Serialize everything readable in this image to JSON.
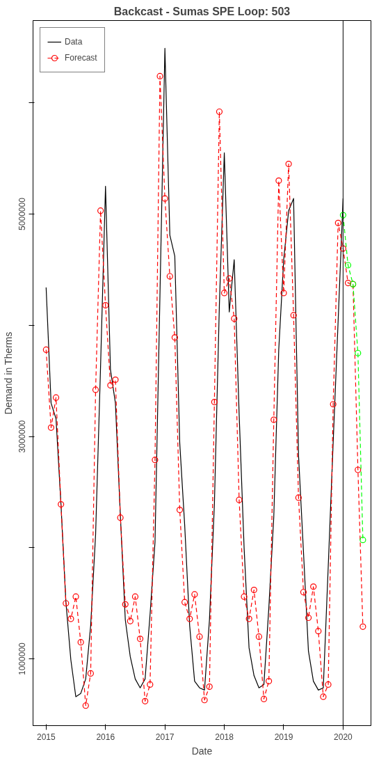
{
  "chart_data": {
    "type": "line",
    "title": "Backcast - Sumas SPE Loop: 503",
    "xlabel": "Date",
    "ylabel": "Demand in Therms",
    "xlim": [
      "2014-10-12",
      "2020-06-20"
    ],
    "xticks": [
      "2015",
      "2016",
      "2017",
      "2018",
      "2019",
      "2020"
    ],
    "ylim": [
      400000,
      6740000
    ],
    "yticks": [
      1000000,
      {
        "value": 2000000,
        "label": null
      },
      3000000,
      {
        "value": 4000000,
        "label": null
      },
      5000000,
      {
        "value": 6000000,
        "label": null
      }
    ],
    "grid": false,
    "legend": "top left",
    "ref_lines": [
      {
        "axis": "x",
        "value": "2020",
        "color": "#000000"
      }
    ],
    "series": [
      {
        "name": "Data",
        "color": "#000000",
        "marker": "none",
        "line_style": "solid",
        "x": [
          "2015-01",
          "2015-02",
          "2015-03",
          "2015-04",
          "2015-05",
          "2015-06",
          "2015-07",
          "2015-08",
          "2015-09",
          "2015-10",
          "2015-11",
          "2015-12",
          "2016-01",
          "2016-02",
          "2016-03",
          "2016-04",
          "2016-05",
          "2016-06",
          "2016-07",
          "2016-08",
          "2016-09",
          "2016-10",
          "2016-11",
          "2016-12",
          "2017-01",
          "2017-02",
          "2017-03",
          "2017-04",
          "2017-05",
          "2017-06",
          "2017-07",
          "2017-08",
          "2017-09",
          "2017-10",
          "2017-11",
          "2017-12",
          "2018-01",
          "2018-02",
          "2018-03",
          "2018-04",
          "2018-05",
          "2018-06",
          "2018-07",
          "2018-08",
          "2018-09",
          "2018-10",
          "2018-11",
          "2018-12",
          "2019-01",
          "2019-02",
          "2019-03",
          "2019-04",
          "2019-05",
          "2019-06",
          "2019-07",
          "2019-08",
          "2019-09",
          "2019-10",
          "2019-11",
          "2019-12",
          "2020-01"
        ],
        "values": [
          4340000,
          3300000,
          3160000,
          2390000,
          1510000,
          990000,
          660000,
          690000,
          820000,
          1300000,
          2120000,
          3630000,
          5250000,
          3600000,
          3300000,
          2290000,
          1350000,
          1020000,
          820000,
          740000,
          820000,
          1400000,
          2050000,
          4270000,
          6490000,
          4810000,
          4620000,
          2940000,
          2200000,
          1300000,
          800000,
          740000,
          720000,
          1350000,
          2390000,
          4170000,
          5550000,
          4120000,
          4590000,
          3200000,
          2000000,
          1100000,
          850000,
          740000,
          770000,
          1460000,
          2280000,
          3780000,
          4590000,
          5030000,
          5140000,
          2830000,
          1960000,
          1070000,
          800000,
          720000,
          740000,
          1830000,
          2950000,
          4040000,
          5140000
        ]
      },
      {
        "name": "Forecast",
        "color": "#ff0000",
        "marker": "circle",
        "line_style": "dashed",
        "x": [
          "2015-01",
          "2015-02",
          "2015-03",
          "2015-04",
          "2015-05",
          "2015-06",
          "2015-07",
          "2015-08",
          "2015-09",
          "2015-10",
          "2015-11",
          "2015-12",
          "2016-01",
          "2016-02",
          "2016-03",
          "2016-04",
          "2016-05",
          "2016-06",
          "2016-07",
          "2016-08",
          "2016-09",
          "2016-10",
          "2016-11",
          "2016-12",
          "2017-01",
          "2017-02",
          "2017-03",
          "2017-04",
          "2017-05",
          "2017-06",
          "2017-07",
          "2017-08",
          "2017-09",
          "2017-10",
          "2017-11",
          "2017-12",
          "2018-01",
          "2018-02",
          "2018-03",
          "2018-04",
          "2018-05",
          "2018-06",
          "2018-07",
          "2018-08",
          "2018-09",
          "2018-10",
          "2018-11",
          "2018-12",
          "2019-01",
          "2019-02",
          "2019-03",
          "2019-04",
          "2019-05",
          "2019-06",
          "2019-07",
          "2019-08",
          "2019-09",
          "2019-10",
          "2019-11",
          "2019-12",
          "2020-01",
          "2020-02",
          "2020-03",
          "2020-04",
          "2020-05"
        ],
        "values": [
          3780000,
          3080000,
          3350000,
          2390000,
          1500000,
          1360000,
          1560000,
          1150000,
          580000,
          870000,
          3420000,
          5030000,
          4180000,
          3460000,
          3510000,
          2270000,
          1490000,
          1340000,
          1560000,
          1180000,
          620000,
          770000,
          2790000,
          6240000,
          5140000,
          4440000,
          3890000,
          2340000,
          1510000,
          1360000,
          1580000,
          1200000,
          630000,
          750000,
          3310000,
          5920000,
          4290000,
          4420000,
          4060000,
          2430000,
          1560000,
          1360000,
          1620000,
          1200000,
          640000,
          800000,
          3150000,
          5300000,
          4290000,
          5450000,
          4090000,
          2450000,
          1600000,
          1370000,
          1650000,
          1250000,
          660000,
          770000,
          3290000,
          4920000,
          4690000,
          4380000,
          4370000,
          2700000,
          1290000
        ]
      },
      {
        "color": "#00ff00",
        "marker": "circle",
        "line_style": "dashed",
        "x": [
          "2020-01",
          "2020-02",
          "2020-03",
          "2020-04",
          "2020-05"
        ],
        "values": [
          4990000,
          4540000,
          4370000,
          3750000,
          2070000
        ]
      }
    ]
  }
}
